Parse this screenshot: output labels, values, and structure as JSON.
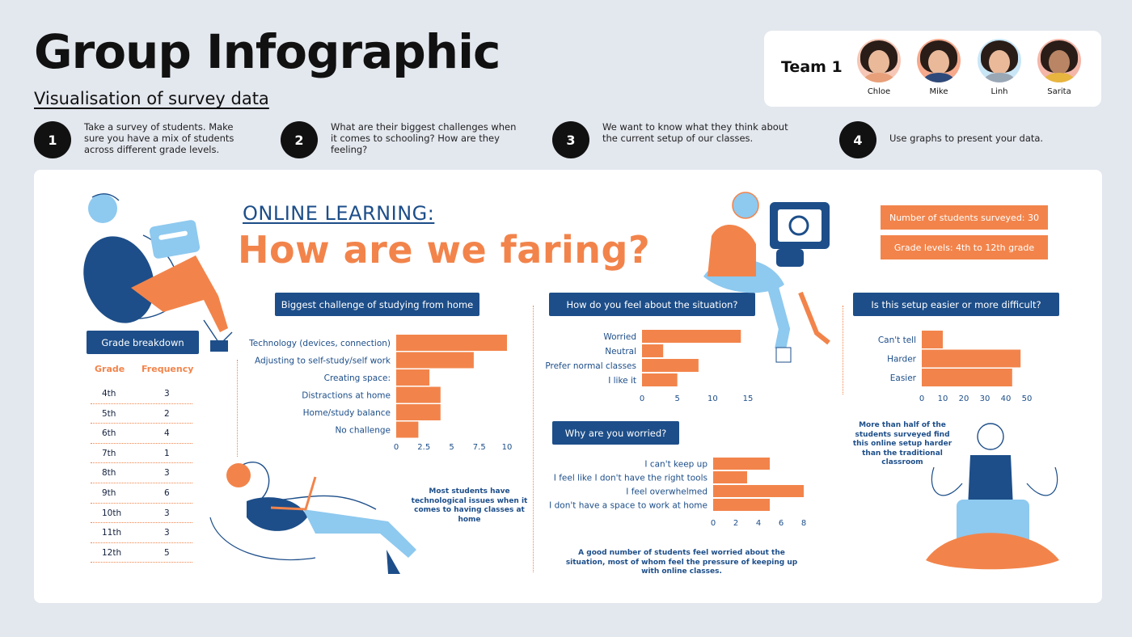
{
  "header": {
    "title": "Group Infographic",
    "subtitle": "Visualisation of survey data"
  },
  "team": {
    "label": "Team 1",
    "members": [
      {
        "name": "Chloe",
        "shirt": "#e8a07a"
      },
      {
        "name": "Mike",
        "shirt": "#2e4a7a"
      },
      {
        "name": "Linh",
        "shirt": "#9aa7b5"
      },
      {
        "name": "Sarita",
        "shirt": "#e8b53f"
      }
    ]
  },
  "steps": [
    {
      "num": "1",
      "text": "Take a survey of students. Make sure you have a mix of students across different grade levels."
    },
    {
      "num": "2",
      "text": "What are their biggest challenges when it comes to schooling? How are they feeling?"
    },
    {
      "num": "3",
      "text": "We want to know what they think about the current setup of our classes."
    },
    {
      "num": "4",
      "text": "Use graphs to present your data."
    }
  ],
  "main": {
    "kicker": "ONLINE LEARNING:",
    "headline": "How are we faring?",
    "stats": [
      "Number of students surveyed: 30",
      "Grade levels: 4th to 12th grade"
    ]
  },
  "grade_table": {
    "title": "Grade breakdown",
    "col_grade": "Grade",
    "col_freq": "Frequency",
    "rows": [
      {
        "grade": "4th",
        "freq": "3"
      },
      {
        "grade": "5th",
        "freq": "2"
      },
      {
        "grade": "6th",
        "freq": "4"
      },
      {
        "grade": "7th",
        "freq": "1"
      },
      {
        "grade": "8th",
        "freq": "3"
      },
      {
        "grade": "9th",
        "freq": "6"
      },
      {
        "grade": "10th",
        "freq": "3"
      },
      {
        "grade": "11th",
        "freq": "3"
      },
      {
        "grade": "12th",
        "freq": "5"
      }
    ]
  },
  "notes": {
    "tech": "Most students have technological issues when it comes to having classes at home",
    "worried": "A good number of students feel worried about the situation, most of whom feel the pressure of keeping up with online classes.",
    "harder": "More than half of the students surveyed find this online setup harder than the traditional classroom"
  },
  "colors": {
    "accent": "#f2844b",
    "navy": "#1d4e89",
    "light_blue": "#8ec9ef"
  },
  "chart_data": [
    {
      "type": "bar",
      "orientation": "horizontal",
      "title": "Biggest challenge of studying from home",
      "categories": [
        "Technology (devices, connection)",
        "Adjusting to self-study/self work",
        "Creating space:",
        "Distractions at home",
        "Home/study balance",
        "No challenge"
      ],
      "values": [
        10,
        7,
        3,
        4,
        4,
        2
      ],
      "xlim": [
        0,
        10
      ],
      "xticks": [
        "0",
        "2.5",
        "5",
        "7.5",
        "10"
      ]
    },
    {
      "type": "bar",
      "orientation": "horizontal",
      "title": "How do you feel about the situation?",
      "categories": [
        "Worried",
        "Neutral",
        "Prefer normal classes",
        "I like it"
      ],
      "values": [
        14,
        3,
        8,
        5
      ],
      "xlim": [
        0,
        15
      ],
      "xticks": [
        "0",
        "5",
        "10",
        "15"
      ]
    },
    {
      "type": "bar",
      "orientation": "horizontal",
      "title": "Why are you worried?",
      "categories": [
        "I can't keep up",
        "I feel like I don't have the right tools",
        "I feel overwhelmed",
        "I don't have a space to work at home"
      ],
      "values": [
        5,
        3,
        8,
        5
      ],
      "xlim": [
        0,
        8
      ],
      "xticks": [
        "0",
        "2",
        "4",
        "6",
        "8"
      ]
    },
    {
      "type": "bar",
      "orientation": "horizontal",
      "title": "Is this setup easier or more difficult?",
      "categories": [
        "Can't tell",
        "Harder",
        "Easier"
      ],
      "values": [
        10,
        47,
        43
      ],
      "xlim": [
        0,
        50
      ],
      "xticks": [
        "0",
        "10",
        "20",
        "30",
        "40",
        "50"
      ]
    }
  ]
}
